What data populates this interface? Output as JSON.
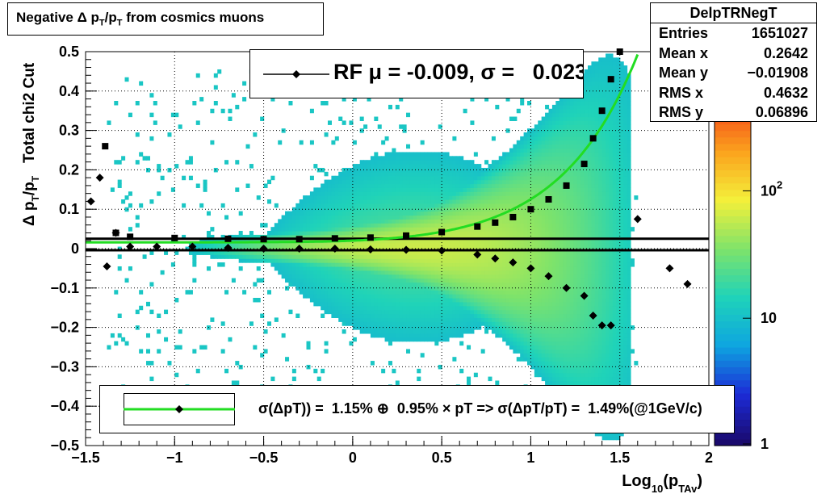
{
  "title": "Negative Δ p",
  "title_sub1": "T",
  "title_mid": "/p",
  "title_sub2": "T",
  "title_end": " from cosmics muons",
  "stats": {
    "name": "DelpTRNegT",
    "rows": [
      {
        "label": "Entries",
        "value": "1651027"
      },
      {
        "label": "Mean x",
        "value": "0.2642"
      },
      {
        "label": "Mean y",
        "value": "−0.01908"
      },
      {
        "label": "RMS x",
        "value": "0.4632"
      },
      {
        "label": "RMS y",
        "value": "0.06896"
      }
    ]
  },
  "legend_rf": "RF μ = -0.009, σ =   0.023",
  "legend_fit": "σ(ΔpT)) =  1.15% ⊕  0.95% × pT => σ(ΔpT/pT) =  1.49%(@1GeV/c)",
  "colors": {
    "fit_curve": "#22dd22",
    "markers": "#000000",
    "palette": [
      "#1a0a6e",
      "#1c2bd6",
      "#0ea5e0",
      "#1fd3b9",
      "#7fe36a",
      "#f4f03a",
      "#fba31d",
      "#f3421a",
      "#9c0b0b"
    ]
  },
  "chart_data": {
    "type": "heatmap",
    "xlabel": "Log10(pTAv)",
    "xlabel_main": "Log",
    "xlabel_sub": "10",
    "xlabel_paren": "(p",
    "xlabel_sub2": "TAv",
    "xlabel_close": ")",
    "ylabel": "Δ pT/pT   Total chi2 Cut",
    "xlim": [
      -1.5,
      2.0
    ],
    "ylim": [
      -0.5,
      0.5
    ],
    "x_ticks": [
      "−1.5",
      "−1",
      "−0.5",
      "0",
      "0.5",
      "1",
      "1.5",
      "2"
    ],
    "x_tick_values": [
      -1.5,
      -1,
      -0.5,
      0,
      0.5,
      1,
      1.5,
      2
    ],
    "y_ticks": [
      "−0.5",
      "−0.4",
      "−0.3",
      "−0.2",
      "−0.1",
      "0",
      "0.1",
      "0.2",
      "0.3",
      "0.4",
      "0.5"
    ],
    "y_tick_values": [
      -0.5,
      -0.4,
      -0.3,
      -0.2,
      -0.1,
      0,
      0.1,
      0.2,
      0.3,
      0.4,
      0.5
    ],
    "z_scale": "log",
    "z_ticks": [
      "1",
      "10",
      "10^2"
    ],
    "z_tick_values": [
      1,
      10,
      100
    ],
    "grid": true,
    "mean_points": [
      [
        -1.47,
        0.12
      ],
      [
        -1.42,
        0.18
      ],
      [
        -1.38,
        -0.045
      ],
      [
        -1.33,
        0.04
      ],
      [
        -1.25,
        0.005
      ],
      [
        -1.1,
        0.005
      ],
      [
        -0.9,
        0.005
      ],
      [
        -0.7,
        0.002
      ],
      [
        -0.5,
        0.0
      ],
      [
        -0.3,
        0.0
      ],
      [
        -0.1,
        0.0
      ],
      [
        0.1,
        -0.002
      ],
      [
        0.3,
        -0.003
      ],
      [
        0.5,
        -0.005
      ],
      [
        0.7,
        -0.015
      ],
      [
        0.8,
        -0.025
      ],
      [
        0.9,
        -0.035
      ],
      [
        1.0,
        -0.05
      ],
      [
        1.1,
        -0.07
      ],
      [
        1.2,
        -0.1
      ],
      [
        1.3,
        -0.12
      ],
      [
        1.35,
        -0.17
      ],
      [
        1.4,
        -0.195
      ],
      [
        1.45,
        -0.195
      ],
      [
        1.6,
        0.075
      ],
      [
        1.78,
        -0.05
      ],
      [
        1.88,
        -0.09
      ]
    ],
    "sigma_points": [
      [
        -1.39,
        0.26
      ],
      [
        -1.33,
        0.04
      ],
      [
        -1.25,
        0.03
      ],
      [
        -1.0,
        0.027
      ],
      [
        -0.7,
        0.025
      ],
      [
        -0.5,
        0.024
      ],
      [
        -0.3,
        0.024
      ],
      [
        -0.1,
        0.026
      ],
      [
        0.1,
        0.028
      ],
      [
        0.3,
        0.033
      ],
      [
        0.5,
        0.042
      ],
      [
        0.7,
        0.056
      ],
      [
        0.8,
        0.066
      ],
      [
        0.9,
        0.08
      ],
      [
        1.0,
        0.1
      ],
      [
        1.1,
        0.125
      ],
      [
        1.2,
        0.16
      ],
      [
        1.3,
        0.215
      ],
      [
        1.35,
        0.28
      ],
      [
        1.4,
        0.35
      ],
      [
        1.45,
        0.43
      ],
      [
        1.5,
        0.5
      ]
    ],
    "fit": {
      "a_percent": 1.15,
      "b_percent": 0.95
    },
    "rf": {
      "mu": -0.009,
      "sigma": 0.023
    }
  }
}
